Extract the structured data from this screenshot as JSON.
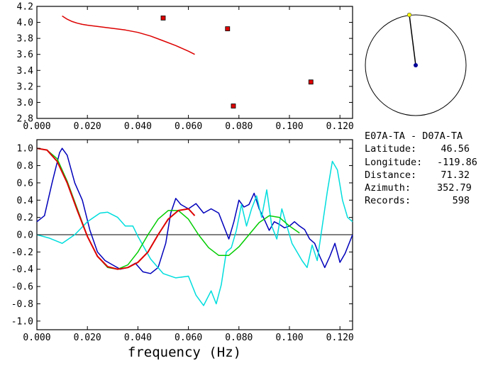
{
  "chart_data": [
    {
      "type": "scatter",
      "xlim": [
        0.0,
        0.125
      ],
      "ylim": [
        2.8,
        4.2
      ],
      "xticks": [
        "0.000",
        "0.020",
        "0.040",
        "0.060",
        "0.080",
        "0.100",
        "0.120"
      ],
      "yticks": [
        "2.8",
        "3.0",
        "3.2",
        "3.4",
        "3.6",
        "3.8",
        "4.0",
        "4.2"
      ],
      "grid": false,
      "series": [
        {
          "kind": "line",
          "color": "#dd0000",
          "x": [
            0.01,
            0.012,
            0.014,
            0.016,
            0.018,
            0.02,
            0.025,
            0.03,
            0.035,
            0.04,
            0.045,
            0.05,
            0.055,
            0.06,
            0.0625
          ],
          "y": [
            4.08,
            4.04,
            4.01,
            3.99,
            3.975,
            3.965,
            3.945,
            3.925,
            3.905,
            3.875,
            3.83,
            3.77,
            3.71,
            3.64,
            3.6
          ]
        },
        {
          "kind": "points",
          "color": "#dd0000",
          "x": [
            0.05,
            0.0755,
            0.0778,
            0.1085
          ],
          "y": [
            4.055,
            3.92,
            2.955,
            3.255
          ]
        }
      ]
    },
    {
      "type": "line",
      "xlim": [
        0.0,
        0.125
      ],
      "ylim": [
        -1.1,
        1.1
      ],
      "xticks": [
        "0.000",
        "0.020",
        "0.040",
        "0.060",
        "0.080",
        "0.100",
        "0.120"
      ],
      "yticks": [
        "1.0",
        "0.8",
        "0.6",
        "0.4",
        "0.2",
        "0.0",
        "-0.2",
        "-0.4",
        "-0.6",
        "-0.8",
        "-1.0"
      ],
      "xlabel": "frequency (Hz)",
      "zero_line": true,
      "series": [
        {
          "color": "#0000bb",
          "x": [
            0.0,
            0.003,
            0.006,
            0.009,
            0.01,
            0.012,
            0.015,
            0.018,
            0.021,
            0.024,
            0.027,
            0.03,
            0.033,
            0.036,
            0.039,
            0.042,
            0.045,
            0.048,
            0.051,
            0.053,
            0.055,
            0.057,
            0.06,
            0.063,
            0.066,
            0.069,
            0.072,
            0.074,
            0.076,
            0.078,
            0.08,
            0.082,
            0.084,
            0.086,
            0.088,
            0.09,
            0.092,
            0.094,
            0.096,
            0.098,
            0.1,
            0.102,
            0.104,
            0.106,
            0.108,
            0.11,
            0.112,
            0.114,
            0.116,
            0.118,
            0.12,
            0.122,
            0.125
          ],
          "y": [
            0.15,
            0.22,
            0.6,
            0.95,
            1.0,
            0.92,
            0.6,
            0.4,
            0.05,
            -0.2,
            -0.3,
            -0.35,
            -0.4,
            -0.38,
            -0.33,
            -0.43,
            -0.45,
            -0.38,
            -0.1,
            0.25,
            0.42,
            0.35,
            0.3,
            0.36,
            0.25,
            0.3,
            0.25,
            0.1,
            -0.05,
            0.15,
            0.4,
            0.32,
            0.35,
            0.48,
            0.3,
            0.18,
            0.05,
            0.15,
            0.12,
            0.08,
            0.1,
            0.15,
            0.1,
            0.06,
            -0.05,
            -0.1,
            -0.25,
            -0.38,
            -0.25,
            -0.1,
            -0.32,
            -0.22,
            0.0
          ]
        },
        {
          "color": "#00dddd",
          "x": [
            0.0,
            0.005,
            0.01,
            0.015,
            0.02,
            0.025,
            0.028,
            0.032,
            0.035,
            0.038,
            0.04,
            0.045,
            0.05,
            0.055,
            0.06,
            0.063,
            0.066,
            0.069,
            0.071,
            0.073,
            0.075,
            0.077,
            0.079,
            0.081,
            0.083,
            0.085,
            0.087,
            0.089,
            0.091,
            0.093,
            0.095,
            0.097,
            0.099,
            0.101,
            0.103,
            0.105,
            0.107,
            0.109,
            0.111,
            0.113,
            0.115,
            0.117,
            0.119,
            0.121,
            0.123,
            0.125
          ],
          "y": [
            0.0,
            -0.04,
            -0.1,
            0.0,
            0.15,
            0.25,
            0.26,
            0.2,
            0.1,
            0.1,
            -0.02,
            -0.28,
            -0.45,
            -0.5,
            -0.48,
            -0.7,
            -0.82,
            -0.65,
            -0.8,
            -0.58,
            -0.2,
            -0.15,
            0.05,
            0.35,
            0.1,
            0.3,
            0.45,
            0.2,
            0.52,
            0.1,
            -0.05,
            0.3,
            0.1,
            -0.1,
            -0.2,
            -0.3,
            -0.38,
            -0.12,
            -0.3,
            0.1,
            0.5,
            0.85,
            0.75,
            0.4,
            0.2,
            0.15
          ]
        },
        {
          "color": "#00cc00",
          "x": [
            0.0,
            0.004,
            0.008,
            0.012,
            0.016,
            0.02,
            0.024,
            0.028,
            0.032,
            0.036,
            0.04,
            0.044,
            0.048,
            0.052,
            0.056,
            0.06,
            0.064,
            0.068,
            0.072,
            0.076,
            0.08,
            0.084,
            0.088,
            0.092,
            0.096,
            0.1,
            0.104
          ],
          "y": [
            1.0,
            0.98,
            0.88,
            0.62,
            0.3,
            -0.02,
            -0.25,
            -0.38,
            -0.4,
            -0.35,
            -0.2,
            0.0,
            0.18,
            0.28,
            0.28,
            0.18,
            0.0,
            -0.15,
            -0.24,
            -0.24,
            -0.14,
            0.0,
            0.14,
            0.22,
            0.2,
            0.1,
            0.02
          ]
        },
        {
          "color": "#dd0000",
          "width": 2,
          "x": [
            0.0,
            0.004,
            0.008,
            0.012,
            0.016,
            0.02,
            0.024,
            0.028,
            0.032,
            0.036,
            0.04,
            0.044,
            0.048,
            0.052,
            0.056,
            0.06,
            0.0625
          ],
          "y": [
            1.0,
            0.98,
            0.85,
            0.6,
            0.28,
            -0.02,
            -0.25,
            -0.37,
            -0.4,
            -0.38,
            -0.32,
            -0.2,
            0.0,
            0.18,
            0.28,
            0.3,
            0.22
          ]
        }
      ]
    }
  ],
  "map": {
    "station_color": "#ffff00",
    "center_color": "#000099"
  },
  "info": {
    "title": "E07A-TA - D07A-TA",
    "rows": [
      {
        "label": "Latitude:",
        "value": "46.56"
      },
      {
        "label": "Longitude:",
        "value": "-119.86"
      },
      {
        "label": "Distance:",
        "value": "71.32"
      },
      {
        "label": "Azimuth:",
        "value": "352.79"
      },
      {
        "label": "Records:",
        "value": "598"
      }
    ]
  }
}
